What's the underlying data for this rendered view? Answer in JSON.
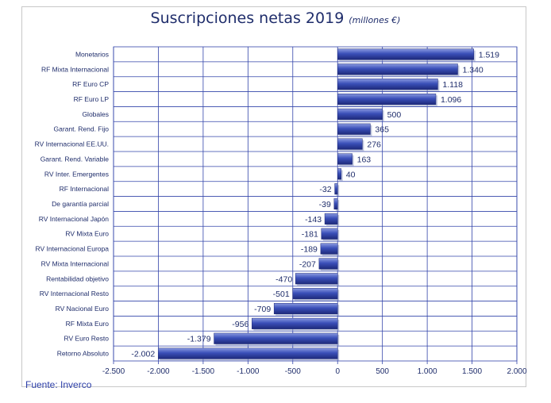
{
  "chart_data": {
    "type": "bar",
    "orientation": "horizontal",
    "title": "Suscripciones netas 2019",
    "subtitle": "(millones €)",
    "source": "Fuente: Inverco",
    "categories": [
      "Monetarios",
      "RF Mixta Internacional",
      "RF Euro CP",
      "RF Euro LP",
      "Globales",
      "Garant. Rend. Fijo",
      "RV Internacional EE.UU.",
      "Garant. Rend. Variable",
      "RV Inter. Emergentes",
      "RF Internacional",
      "De garantía parcial",
      "RV Internacional Japón",
      "RV Mixta Euro",
      "RV Internacional Europa",
      "RV Mixta Internacional",
      "Rentabilidad objetivo",
      "RV Internacional Resto",
      "RV Nacional Euro",
      "RF Mixta Euro",
      "RV Euro Resto",
      "Retorno Absoluto"
    ],
    "values": [
      1519,
      1340,
      1118,
      1096,
      500,
      365,
      276,
      163,
      40,
      -32,
      -39,
      -143,
      -181,
      -189,
      -207,
      -470,
      -501,
      -709,
      -956,
      -1379,
      -2002
    ],
    "value_labels": [
      "1.519",
      "1.340",
      "1.118",
      "1.096",
      "500",
      "365",
      "276",
      "163",
      "40",
      "-32",
      "-39",
      "-143",
      "-181",
      "-189",
      "-207",
      "-470",
      "-501",
      "-709",
      "-956",
      "-1.379",
      "-2.002"
    ],
    "xlim": [
      -2500,
      2000
    ],
    "xticks": [
      -2500,
      -2000,
      -1500,
      -1000,
      -500,
      0,
      500,
      1000,
      1500,
      2000
    ],
    "xtick_labels": [
      "-2.500",
      "-2.000",
      "-1.500",
      "-1.000",
      "-500",
      "0",
      "500",
      "1.000",
      "1.500",
      "2.000"
    ],
    "grid": true,
    "colors": {
      "bar": "#3a4fb8",
      "bar_light": "#8a9ae0",
      "bar_dark": "#1e2a7a",
      "grid": "#3344aa",
      "text": "#1f2d6b"
    }
  }
}
